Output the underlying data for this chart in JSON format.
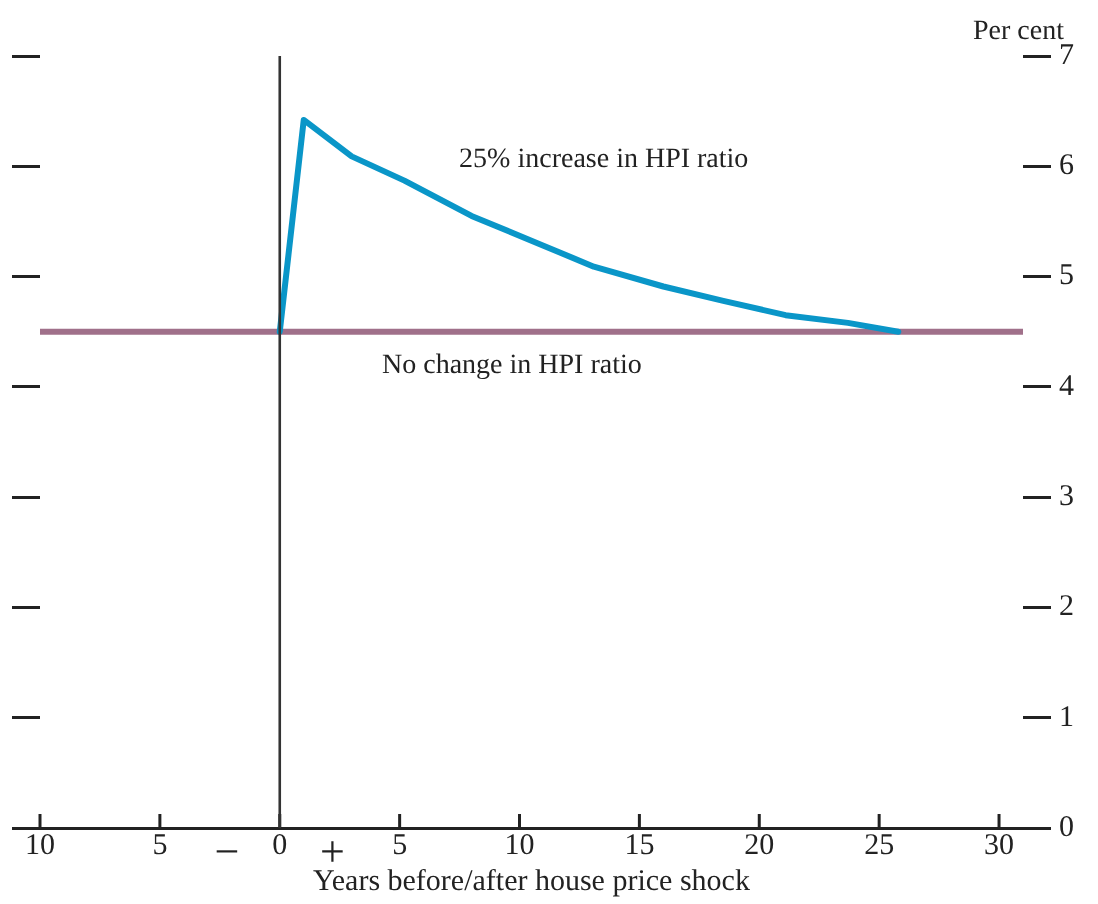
{
  "chart_data": {
    "type": "line",
    "xlabel": "Years before/after house price shock",
    "ylabel": "Per cent",
    "xlim": [
      -10,
      31
    ],
    "xticks": [
      {
        "value": -10,
        "label": "10"
      },
      {
        "value": -5,
        "label": "5"
      },
      0,
      5,
      10,
      15,
      20,
      25,
      30
    ],
    "ylim": [
      0,
      7
    ],
    "yticks": [
      0,
      1,
      2,
      3,
      4,
      5,
      6,
      7
    ],
    "grid": false,
    "legend": false,
    "marker": "none",
    "line_style": "solid",
    "series": [
      {
        "name": "25% increase in HPI ratio",
        "color": "#0a96c8",
        "x": [
          0,
          1,
          3,
          5.2,
          8,
          11,
          13.1,
          16,
          18.5,
          21.1,
          23.7,
          25.8
        ],
        "values": [
          4.5,
          6.42,
          6.09,
          5.87,
          5.55,
          5.28,
          5.09,
          4.91,
          4.78,
          4.65,
          4.58,
          4.5
        ]
      },
      {
        "name": "No change in HPI ratio",
        "color": "#a0708a",
        "x": [
          -10,
          31
        ],
        "values": [
          4.5,
          4.5
        ]
      }
    ],
    "ref_lines": [
      {
        "axis": "x",
        "value": 0,
        "color": "#333333"
      }
    ],
    "annotations": [
      "−",
      "+"
    ]
  }
}
